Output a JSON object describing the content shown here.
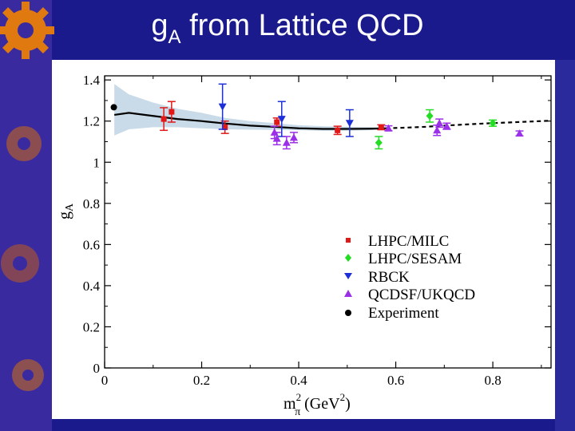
{
  "slide": {
    "title_main": "g",
    "title_sub": "A",
    "title_rest": " from Lattice QCD",
    "background_color": "#1a1a8c",
    "decor_color": "#e07a10"
  },
  "chart_data": {
    "type": "scatter",
    "title": "",
    "xlabel": {
      "base": "m",
      "sup": "2",
      "sub": "π",
      "units_open": " (GeV",
      "units_sup": "2",
      "units_close": ")"
    },
    "ylabel": {
      "base": "g",
      "sub": "A"
    },
    "xlim": [
      0,
      0.92
    ],
    "ylim": [
      0,
      1.42
    ],
    "xticks": [
      0,
      0.2,
      0.4,
      0.6,
      0.8
    ],
    "xtick_labels": [
      "0",
      "0.2",
      "0.4",
      "0.6",
      "0.8"
    ],
    "yticks": [
      0,
      0.2,
      0.4,
      0.6,
      0.8,
      1,
      1.2,
      1.4
    ],
    "ytick_labels": [
      "0",
      "0.2",
      "0.4",
      "0.6",
      "0.8",
      "1",
      "1.2",
      "1.4"
    ],
    "legend_position": "right-center",
    "series": [
      {
        "name": "LHPC/MILC",
        "marker": "square",
        "color": "#e01818",
        "points": [
          [
            0.122,
            1.21,
            0.055
          ],
          [
            0.138,
            1.245,
            0.05
          ],
          [
            0.248,
            1.17,
            0.03
          ],
          [
            0.355,
            1.195,
            0.02
          ],
          [
            0.48,
            1.155,
            0.02
          ],
          [
            0.57,
            1.17,
            0.012
          ]
        ]
      },
      {
        "name": "LHPC/SESAM",
        "marker": "diamond",
        "color": "#22dd22",
        "points": [
          [
            0.565,
            1.095,
            0.03
          ],
          [
            0.67,
            1.225,
            0.03
          ],
          [
            0.8,
            1.19,
            0.015
          ]
        ]
      },
      {
        "name": "RBCK",
        "marker": "triangle-down",
        "color": "#1c2fd8",
        "points": [
          [
            0.243,
            1.27,
            0.11
          ],
          [
            0.365,
            1.21,
            0.085
          ],
          [
            0.505,
            1.19,
            0.065
          ]
        ]
      },
      {
        "name": "QCDSF/UKQCD",
        "marker": "triangle-up",
        "color": "#9b30e8",
        "points": [
          [
            0.35,
            1.145,
            0.03
          ],
          [
            0.355,
            1.115,
            0.03
          ],
          [
            0.375,
            1.095,
            0.03
          ],
          [
            0.39,
            1.12,
            0.025
          ],
          [
            0.585,
            1.165,
            0.012
          ],
          [
            0.685,
            1.155,
            0.025
          ],
          [
            0.69,
            1.19,
            0.02
          ],
          [
            0.705,
            1.175,
            0.015
          ],
          [
            0.855,
            1.14,
            0.012
          ]
        ]
      },
      {
        "name": "Experiment",
        "marker": "circle",
        "color": "#000000",
        "points": [
          [
            0.019,
            1.267,
            0.0
          ]
        ]
      }
    ],
    "fit_curve": {
      "solid": [
        [
          0.02,
          1.23
        ],
        [
          0.05,
          1.24
        ],
        [
          0.1,
          1.225
        ],
        [
          0.15,
          1.21
        ],
        [
          0.2,
          1.2
        ],
        [
          0.25,
          1.188
        ],
        [
          0.3,
          1.178
        ],
        [
          0.35,
          1.172
        ],
        [
          0.4,
          1.165
        ],
        [
          0.45,
          1.162
        ],
        [
          0.5,
          1.162
        ],
        [
          0.55,
          1.163
        ],
        [
          0.58,
          1.165
        ]
      ],
      "dashed": [
        [
          0.58,
          1.165
        ],
        [
          0.62,
          1.168
        ],
        [
          0.66,
          1.172
        ],
        [
          0.7,
          1.178
        ],
        [
          0.74,
          1.183
        ],
        [
          0.78,
          1.188
        ],
        [
          0.82,
          1.192
        ],
        [
          0.86,
          1.196
        ],
        [
          0.9,
          1.2
        ],
        [
          0.92,
          1.202
        ]
      ],
      "band_x": [
        0.02,
        0.05,
        0.1,
        0.15,
        0.2,
        0.25,
        0.3,
        0.35,
        0.4,
        0.45,
        0.5,
        0.55,
        0.58
      ],
      "band_upper": [
        1.38,
        1.33,
        1.29,
        1.26,
        1.24,
        1.215,
        1.2,
        1.19,
        1.18,
        1.175,
        1.172,
        1.17,
        1.169
      ],
      "band_lower": [
        1.13,
        1.16,
        1.17,
        1.17,
        1.165,
        1.16,
        1.158,
        1.157,
        1.155,
        1.153,
        1.153,
        1.156,
        1.16
      ],
      "band_color": "#c9dbe8"
    }
  }
}
